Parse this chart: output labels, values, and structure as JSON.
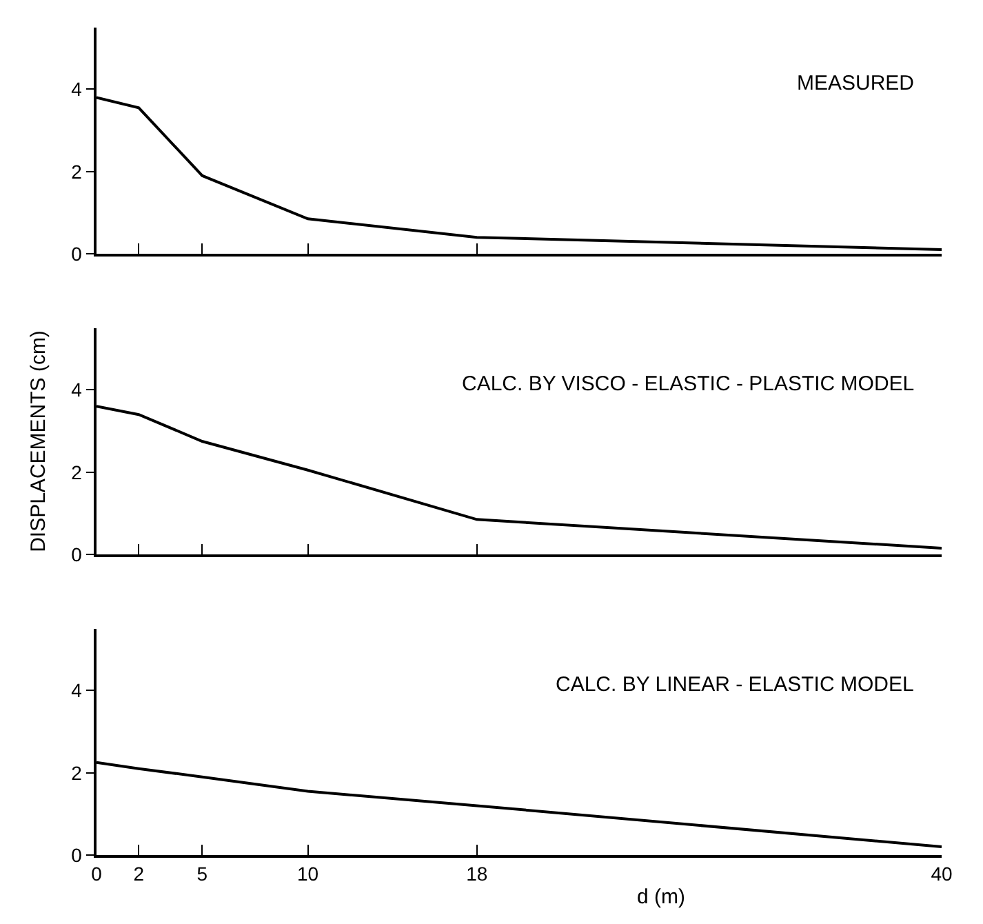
{
  "chart_data": [
    {
      "type": "line",
      "title": "MEASURED",
      "x": [
        0,
        2,
        5,
        10,
        18,
        40
      ],
      "xlim": [
        0,
        40
      ],
      "xticks": [
        0,
        2,
        5,
        10,
        18,
        40
      ],
      "ylim": [
        0,
        5.5
      ],
      "yticks": [
        0,
        2,
        4
      ],
      "tick_labels": "y",
      "marker": "none",
      "line_style": "solid",
      "series": [
        {
          "color": "#000000",
          "values": [
            3.8,
            3.55,
            1.9,
            0.85,
            0.4,
            0.1
          ]
        }
      ]
    },
    {
      "type": "line",
      "title": "CALC. BY VISCO - ELASTIC - PLASTIC MODEL",
      "ylabel": "DISPLACEMENTS (cm)",
      "x": [
        0,
        2,
        5,
        10,
        18,
        40
      ],
      "xlim": [
        0,
        40
      ],
      "xticks": [
        0,
        2,
        5,
        10,
        18,
        40
      ],
      "ylim": [
        0,
        5.5
      ],
      "yticks": [
        0,
        2,
        4
      ],
      "tick_labels": "y",
      "marker": "none",
      "line_style": "solid",
      "series": [
        {
          "color": "#000000",
          "values": [
            3.6,
            3.4,
            2.75,
            2.05,
            0.85,
            0.15
          ]
        }
      ]
    },
    {
      "type": "line",
      "title": "CALC. BY LINEAR - ELASTIC MODEL",
      "xlabel": "d (m)",
      "x": [
        0,
        2,
        5,
        10,
        18,
        40
      ],
      "xlim": [
        0,
        40
      ],
      "xticks": [
        0,
        2,
        5,
        10,
        18,
        40
      ],
      "ylim": [
        0,
        5.5
      ],
      "yticks": [
        0,
        2,
        4
      ],
      "marker": "none",
      "line_style": "solid",
      "series": [
        {
          "color": "#000000",
          "values": [
            2.25,
            2.1,
            1.9,
            1.55,
            1.2,
            0.2
          ]
        }
      ]
    }
  ]
}
